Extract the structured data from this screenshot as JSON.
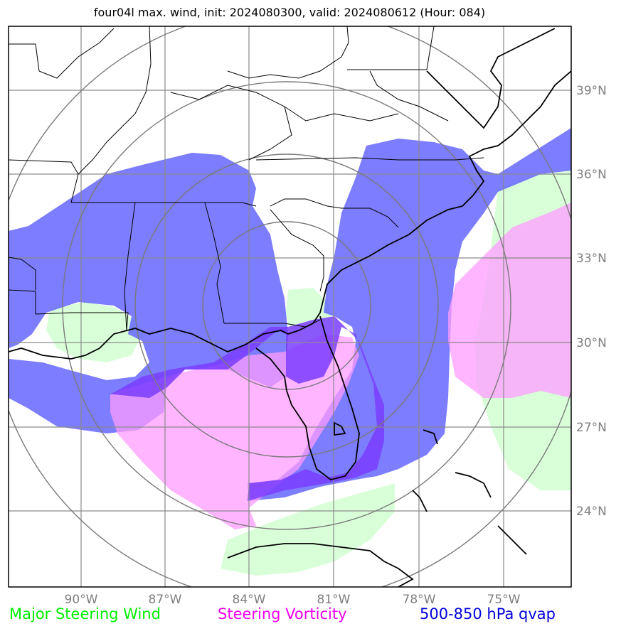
{
  "title": "four04l max. wind, init: 2024080300, valid: 2024080612 (Hour: 084)",
  "colors": {
    "qvap": "#5b5cff",
    "vorticity": "#ff9cff",
    "steering_wind": "#d9ffd9",
    "grid": "#8a8a8a",
    "range_rings": "#7a7a7a",
    "coastline": "#000000",
    "tick_label": "#7f7f7f"
  },
  "axes": {
    "lon_ticks": [
      "90°W",
      "87°W",
      "84°W",
      "81°W",
      "78°W",
      "75°W"
    ],
    "lat_ticks": [
      "39°N",
      "36°N",
      "33°N",
      "30°N",
      "27°N",
      "24°N"
    ]
  },
  "legend": [
    {
      "label": "Major Steering Wind",
      "color": "#00ee00"
    },
    {
      "label": "Steering Vorticity",
      "color": "#ee00ee"
    },
    {
      "label": "500-850 hPa qvap",
      "color": "#0000dd"
    }
  ]
}
